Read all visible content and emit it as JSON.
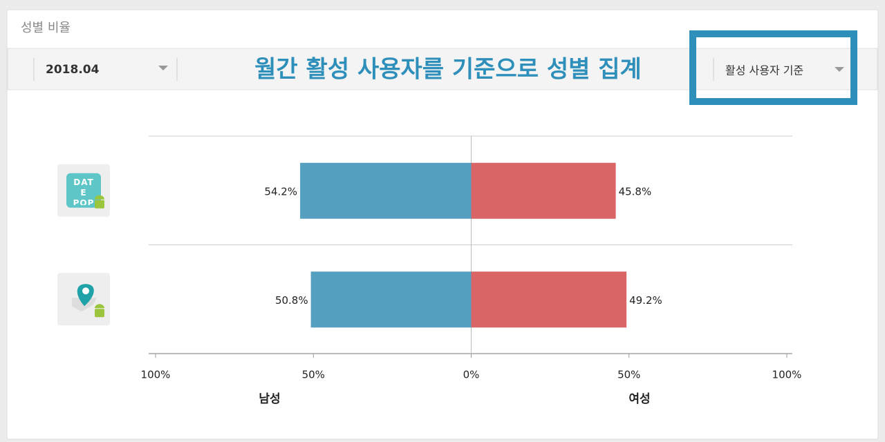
{
  "panel": {
    "title": "성별 비율"
  },
  "period_select": {
    "value": "2018.04"
  },
  "headline": "월간 활성 사용자를 기준으로 성별 집계",
  "basis_select": {
    "value": "활성 사용자 기준"
  },
  "chart_data": {
    "type": "bar",
    "categories": [
      "DATE POP",
      null
    ],
    "series": [
      {
        "name": "남성",
        "color": "#55a0c0",
        "values": [
          54.2,
          50.8
        ],
        "value_labels": [
          "54.2%",
          "50.8%"
        ]
      },
      {
        "name": "여성",
        "color": "#d96567",
        "values": [
          45.8,
          49.2
        ],
        "value_labels": [
          "45.8%",
          "49.2%"
        ]
      }
    ],
    "xlim": [
      -100,
      100
    ],
    "xticks": [
      {
        "value": -100,
        "label": "100%"
      },
      {
        "value": -50,
        "label": "50%"
      },
      {
        "value": 0,
        "label": "0%"
      },
      {
        "value": 50,
        "label": "50%"
      },
      {
        "value": 100,
        "label": "100%"
      }
    ],
    "grid": true
  }
}
